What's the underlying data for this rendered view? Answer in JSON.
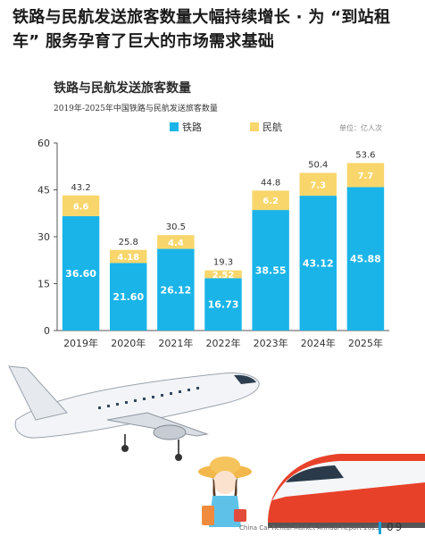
{
  "headline": "铁路与民航发送旅客数量大幅持续增长 · 为 “到站租车” 服务孕育了巨大的市场需求基础",
  "footer": {
    "report_name": "China Car Rental Market Annual Report 2025",
    "page_number": "09"
  },
  "colors": {
    "rail": "#1ab4e8",
    "aviation": "#f8d66b",
    "axis": "#555555",
    "grid": "#dddddd",
    "accent": "#1a9fdc"
  },
  "chart_data": {
    "type": "bar",
    "stacked": true,
    "title": "铁路与民航发送旅客数量",
    "subtitle": "2019年-2025年中国铁路与民航发送旅客数量",
    "unit": "单位：亿人次",
    "categories": [
      "2019年",
      "2020年",
      "2021年",
      "2022年",
      "2023年",
      "2024年",
      "2025年"
    ],
    "series": [
      {
        "name": "铁路",
        "values": [
          36.6,
          21.6,
          26.12,
          16.73,
          38.55,
          43.12,
          45.88
        ],
        "labels": [
          "36.60",
          "21.60",
          "26.12",
          "16.73",
          "38.55",
          "43.12",
          "45.88"
        ]
      },
      {
        "name": "民航",
        "values": [
          6.6,
          4.18,
          4.4,
          2.52,
          6.2,
          7.3,
          7.7
        ],
        "labels": [
          "6.6",
          "4.18",
          "4.4",
          "2.52",
          "6.2",
          "7.3",
          "7.7"
        ]
      }
    ],
    "totals": [
      "43.2",
      "25.8",
      "30.5",
      "19.3",
      "44.8",
      "50.4",
      "53.6"
    ],
    "y_ticks": [
      "0",
      "15",
      "30",
      "45",
      "60"
    ],
    "ylim": [
      0,
      60
    ],
    "grid": false,
    "legend": "top-center"
  }
}
